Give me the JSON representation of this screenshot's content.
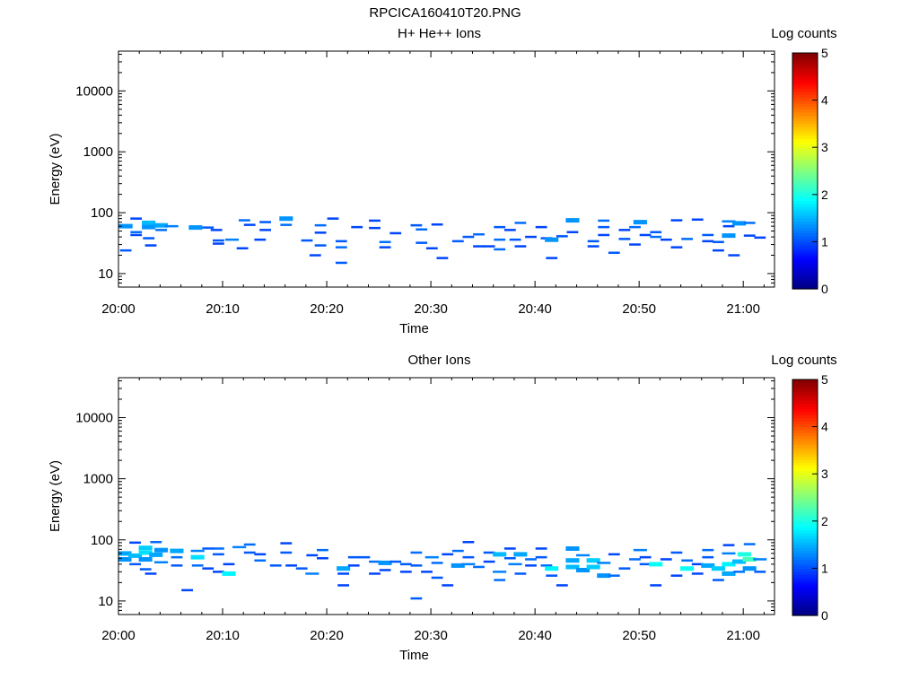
{
  "figure_title": "RPCICA160410T20.PNG",
  "chart_data": [
    {
      "type": "heatmap",
      "title": "H+ He++ Ions",
      "xlabel": "Time",
      "ylabel": "Energy (eV)",
      "x_tick_labels": [
        "20:00",
        "20:10",
        "20:20",
        "20:30",
        "20:40",
        "20:50",
        "21:00"
      ],
      "y_tick_labels": [
        "10",
        "100",
        "1000",
        "10000"
      ],
      "y_scale": "log",
      "ylim": [
        6,
        45000
      ],
      "xlim_minutes": [
        0,
        63
      ],
      "colorbar": {
        "label": "Log counts",
        "min": 0,
        "max": 5,
        "tick_labels": [
          "0",
          "1",
          "2",
          "3",
          "4",
          "5"
        ],
        "colormap": "jet"
      },
      "cells": [
        [
          0.7,
          60,
          1.0
        ],
        [
          0.7,
          24,
          0.7
        ],
        [
          1.7,
          80,
          0.6
        ],
        [
          1.7,
          48,
          0.8
        ],
        [
          1.7,
          43,
          0.6
        ],
        [
          2.9,
          68,
          1.2
        ],
        [
          2.9,
          58,
          1.0
        ],
        [
          2.9,
          38,
          0.7
        ],
        [
          3.1,
          29,
          0.6
        ],
        [
          4.1,
          62,
          1.1
        ],
        [
          4.1,
          52,
          0.8
        ],
        [
          5.1,
          60,
          0.9
        ],
        [
          7.4,
          57,
          1.0
        ],
        [
          8.6,
          57,
          0.7
        ],
        [
          9.4,
          52,
          0.6
        ],
        [
          9.6,
          35,
          0.7
        ],
        [
          9.6,
          31,
          0.6
        ],
        [
          10.9,
          36,
          0.9
        ],
        [
          11.9,
          26,
          0.6
        ],
        [
          12.1,
          75,
          0.8
        ],
        [
          12.6,
          63,
          0.6
        ],
        [
          13.6,
          36,
          0.6
        ],
        [
          14.1,
          52,
          0.6
        ],
        [
          14.1,
          70,
          0.7
        ],
        [
          16.1,
          80,
          1.0
        ],
        [
          16.1,
          63,
          0.8
        ],
        [
          18.1,
          35,
          0.7
        ],
        [
          18.9,
          20,
          0.6
        ],
        [
          19.4,
          29,
          0.7
        ],
        [
          19.4,
          62,
          0.8
        ],
        [
          19.4,
          47,
          0.6
        ],
        [
          20.6,
          80,
          0.6
        ],
        [
          21.4,
          34,
          0.7
        ],
        [
          21.4,
          27,
          0.8
        ],
        [
          21.4,
          15,
          0.7
        ],
        [
          22.9,
          58,
          0.6
        ],
        [
          24.6,
          74,
          0.6
        ],
        [
          24.6,
          56,
          0.6
        ],
        [
          25.6,
          33,
          0.8
        ],
        [
          25.6,
          27,
          0.6
        ],
        [
          26.6,
          46,
          0.6
        ],
        [
          28.6,
          62,
          0.7
        ],
        [
          29.1,
          32,
          0.7
        ],
        [
          29.1,
          53,
          0.8
        ],
        [
          30.1,
          26,
          0.6
        ],
        [
          30.6,
          64,
          0.6
        ],
        [
          31.1,
          18,
          0.6
        ],
        [
          32.6,
          34,
          0.7
        ],
        [
          33.6,
          40,
          0.7
        ],
        [
          34.6,
          44,
          0.8
        ],
        [
          34.6,
          28,
          0.6
        ],
        [
          35.6,
          28,
          0.6
        ],
        [
          36.6,
          58,
          0.7
        ],
        [
          36.6,
          36,
          0.8
        ],
        [
          36.6,
          25,
          0.8
        ],
        [
          37.6,
          52,
          0.6
        ],
        [
          38.1,
          36,
          0.7
        ],
        [
          38.6,
          68,
          0.8
        ],
        [
          38.6,
          28,
          0.6
        ],
        [
          39.6,
          40,
          0.6
        ],
        [
          40.6,
          58,
          0.6
        ],
        [
          41.1,
          38,
          0.7
        ],
        [
          41.6,
          36,
          1.0
        ],
        [
          41.6,
          18,
          0.6
        ],
        [
          42.6,
          41,
          0.7
        ],
        [
          43.6,
          75,
          1.0
        ],
        [
          43.6,
          48,
          0.6
        ],
        [
          45.6,
          34,
          0.7
        ],
        [
          45.6,
          28,
          0.6
        ],
        [
          46.6,
          74,
          0.8
        ],
        [
          46.6,
          58,
          0.7
        ],
        [
          46.6,
          43,
          0.6
        ],
        [
          47.6,
          22,
          0.7
        ],
        [
          48.6,
          52,
          0.6
        ],
        [
          48.6,
          37,
          0.7
        ],
        [
          49.6,
          58,
          0.8
        ],
        [
          49.6,
          30,
          0.6
        ],
        [
          50.1,
          70,
          1.0
        ],
        [
          50.6,
          43,
          0.6
        ],
        [
          51.6,
          48,
          0.7
        ],
        [
          51.6,
          40,
          0.8
        ],
        [
          52.6,
          36,
          0.6
        ],
        [
          53.6,
          75,
          0.6
        ],
        [
          53.6,
          27,
          0.6
        ],
        [
          54.6,
          37,
          0.8
        ],
        [
          55.6,
          77,
          0.6
        ],
        [
          56.6,
          43,
          0.7
        ],
        [
          56.6,
          34,
          0.6
        ],
        [
          57.6,
          33,
          0.7
        ],
        [
          57.6,
          24,
          0.6
        ],
        [
          58.6,
          72,
          0.9
        ],
        [
          58.6,
          42,
          1.0
        ],
        [
          58.6,
          60,
          0.6
        ],
        [
          59.1,
          20,
          0.6
        ],
        [
          59.6,
          67,
          1.0
        ],
        [
          60.6,
          68,
          0.8
        ],
        [
          60.6,
          42,
          0.6
        ],
        [
          61.6,
          39,
          0.6
        ]
      ]
    },
    {
      "type": "heatmap",
      "title": "Other Ions",
      "xlabel": "Time",
      "ylabel": "Energy (eV)",
      "x_tick_labels": [
        "20:00",
        "20:10",
        "20:20",
        "20:30",
        "20:40",
        "20:50",
        "21:00"
      ],
      "y_tick_labels": [
        "10",
        "100",
        "1000",
        "10000"
      ],
      "y_scale": "log",
      "ylim": [
        6,
        45000
      ],
      "xlim_minutes": [
        0,
        63
      ],
      "colorbar": {
        "label": "Log counts",
        "min": 0,
        "max": 5,
        "tick_labels": [
          "0",
          "1",
          "2",
          "3",
          "4",
          "5"
        ],
        "colormap": "jet"
      },
      "cells": [
        [
          0.6,
          60,
          1.1
        ],
        [
          0.6,
          48,
          1.0
        ],
        [
          1.6,
          90,
          0.6
        ],
        [
          1.6,
          55,
          1.2
        ],
        [
          1.6,
          40,
          0.7
        ],
        [
          2.6,
          74,
          1.3
        ],
        [
          2.6,
          62,
          1.4
        ],
        [
          2.6,
          48,
          1.0
        ],
        [
          2.6,
          33,
          0.7
        ],
        [
          3.1,
          28,
          0.6
        ],
        [
          3.6,
          92,
          0.8
        ],
        [
          3.6,
          57,
          1.1
        ],
        [
          4.1,
          68,
          1.0
        ],
        [
          4.1,
          43,
          0.9
        ],
        [
          5.6,
          66,
          1.1
        ],
        [
          5.6,
          52,
          0.8
        ],
        [
          5.6,
          38,
          0.7
        ],
        [
          6.6,
          15,
          0.6
        ],
        [
          7.6,
          66,
          0.9
        ],
        [
          7.6,
          52,
          1.4
        ],
        [
          7.6,
          38,
          0.8
        ],
        [
          8.6,
          72,
          0.7
        ],
        [
          8.6,
          34,
          0.6
        ],
        [
          9.6,
          72,
          0.8
        ],
        [
          9.6,
          58,
          0.7
        ],
        [
          9.6,
          30,
          0.6
        ],
        [
          10.6,
          40,
          0.6
        ],
        [
          10.6,
          28,
          1.5
        ],
        [
          11.6,
          76,
          0.9
        ],
        [
          12.6,
          84,
          0.8
        ],
        [
          12.6,
          62,
          0.7
        ],
        [
          13.6,
          58,
          0.6
        ],
        [
          13.6,
          46,
          0.8
        ],
        [
          15.1,
          38,
          0.7
        ],
        [
          16.1,
          88,
          0.6
        ],
        [
          16.1,
          62,
          0.7
        ],
        [
          16.6,
          38,
          0.6
        ],
        [
          17.6,
          34,
          0.7
        ],
        [
          18.6,
          28,
          0.9
        ],
        [
          18.6,
          56,
          0.6
        ],
        [
          19.6,
          68,
          0.8
        ],
        [
          19.6,
          50,
          0.6
        ],
        [
          21.6,
          34,
          1.1
        ],
        [
          21.6,
          28,
          0.6
        ],
        [
          21.6,
          18,
          0.6
        ],
        [
          22.6,
          52,
          0.7
        ],
        [
          22.6,
          38,
          0.6
        ],
        [
          23.6,
          52,
          0.7
        ],
        [
          24.6,
          44,
          0.8
        ],
        [
          24.6,
          28,
          0.6
        ],
        [
          25.6,
          42,
          1.0
        ],
        [
          25.6,
          32,
          0.6
        ],
        [
          26.6,
          44,
          0.7
        ],
        [
          27.6,
          40,
          0.7
        ],
        [
          27.6,
          30,
          0.6
        ],
        [
          28.6,
          62,
          0.8
        ],
        [
          28.6,
          38,
          0.7
        ],
        [
          28.6,
          11,
          0.7
        ],
        [
          29.6,
          30,
          0.6
        ],
        [
          30.1,
          52,
          0.9
        ],
        [
          30.6,
          42,
          0.8
        ],
        [
          30.6,
          24,
          0.7
        ],
        [
          31.6,
          58,
          0.6
        ],
        [
          31.6,
          18,
          0.6
        ],
        [
          32.6,
          66,
          0.8
        ],
        [
          32.6,
          38,
          1.0
        ],
        [
          33.6,
          92,
          0.6
        ],
        [
          33.6,
          52,
          0.7
        ],
        [
          33.6,
          40,
          0.9
        ],
        [
          34.6,
          36,
          0.8
        ],
        [
          35.6,
          62,
          0.7
        ],
        [
          35.6,
          44,
          0.6
        ],
        [
          36.6,
          58,
          1.2
        ],
        [
          36.6,
          30,
          0.9
        ],
        [
          36.6,
          22,
          0.8
        ],
        [
          37.6,
          72,
          0.6
        ],
        [
          37.6,
          50,
          0.7
        ],
        [
          38.1,
          40,
          0.9
        ],
        [
          38.6,
          58,
          1.1
        ],
        [
          38.6,
          28,
          0.7
        ],
        [
          39.6,
          48,
          0.8
        ],
        [
          39.6,
          38,
          0.6
        ],
        [
          40.6,
          72,
          0.6
        ],
        [
          40.6,
          52,
          0.7
        ],
        [
          41.1,
          38,
          0.8
        ],
        [
          41.6,
          34,
          1.5
        ],
        [
          41.6,
          26,
          0.7
        ],
        [
          42.6,
          18,
          0.6
        ],
        [
          43.6,
          72,
          1.0
        ],
        [
          43.6,
          46,
          1.1
        ],
        [
          43.6,
          36,
          1.2
        ],
        [
          44.6,
          56,
          0.9
        ],
        [
          44.6,
          32,
          1.0
        ],
        [
          45.6,
          46,
          1.3
        ],
        [
          45.6,
          36,
          1.3
        ],
        [
          46.6,
          42,
          0.9
        ],
        [
          46.6,
          26,
          1.0
        ],
        [
          47.6,
          58,
          0.6
        ],
        [
          47.6,
          26,
          0.8
        ],
        [
          48.6,
          34,
          0.7
        ],
        [
          49.6,
          48,
          0.8
        ],
        [
          50.1,
          68,
          0.9
        ],
        [
          50.6,
          52,
          0.6
        ],
        [
          50.6,
          40,
          0.7
        ],
        [
          51.6,
          40,
          1.6
        ],
        [
          51.6,
          18,
          0.6
        ],
        [
          52.6,
          48,
          0.6
        ],
        [
          53.6,
          62,
          0.7
        ],
        [
          53.6,
          26,
          0.6
        ],
        [
          54.6,
          46,
          0.8
        ],
        [
          54.6,
          34,
          1.6
        ],
        [
          55.6,
          40,
          0.6
        ],
        [
          55.6,
          28,
          0.6
        ],
        [
          56.6,
          68,
          0.8
        ],
        [
          56.6,
          52,
          0.7
        ],
        [
          56.6,
          38,
          1.1
        ],
        [
          57.6,
          34,
          1.3
        ],
        [
          57.6,
          22,
          0.7
        ],
        [
          58.6,
          82,
          0.6
        ],
        [
          58.6,
          60,
          0.9
        ],
        [
          58.6,
          40,
          1.5
        ],
        [
          58.6,
          28,
          1.1
        ],
        [
          59.6,
          44,
          1.2
        ],
        [
          59.6,
          30,
          0.8
        ],
        [
          60.1,
          58,
          1.7
        ],
        [
          60.6,
          48,
          1.9
        ],
        [
          60.6,
          85,
          0.8
        ],
        [
          60.6,
          34,
          1.0
        ],
        [
          61.6,
          48,
          0.9
        ],
        [
          61.6,
          30,
          0.7
        ]
      ]
    }
  ]
}
